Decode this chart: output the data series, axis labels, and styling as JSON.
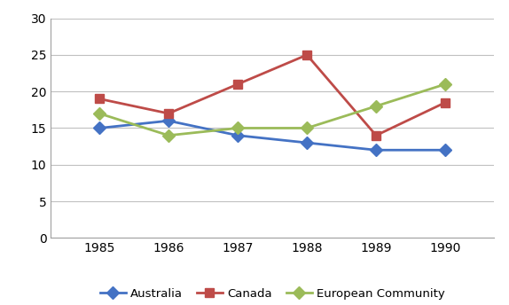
{
  "years": [
    1985,
    1986,
    1987,
    1988,
    1989,
    1990
  ],
  "australia": [
    15,
    16,
    14,
    13,
    12,
    12
  ],
  "canada": [
    19,
    17,
    21,
    25,
    14,
    18.5
  ],
  "european_community": [
    17,
    14,
    15,
    15,
    18,
    21
  ],
  "australia_color": "#4472C4",
  "canada_color": "#BE4B48",
  "ec_color": "#9BBB59",
  "australia_label": "Australia",
  "canada_label": "Canada",
  "ec_label": "European Community",
  "ylim": [
    0,
    30
  ],
  "yticks": [
    0,
    5,
    10,
    15,
    20,
    25,
    30
  ],
  "background_color": "#FFFFFF",
  "grid_color": "#C0C0C0",
  "linewidth": 2.0,
  "markersize": 7
}
